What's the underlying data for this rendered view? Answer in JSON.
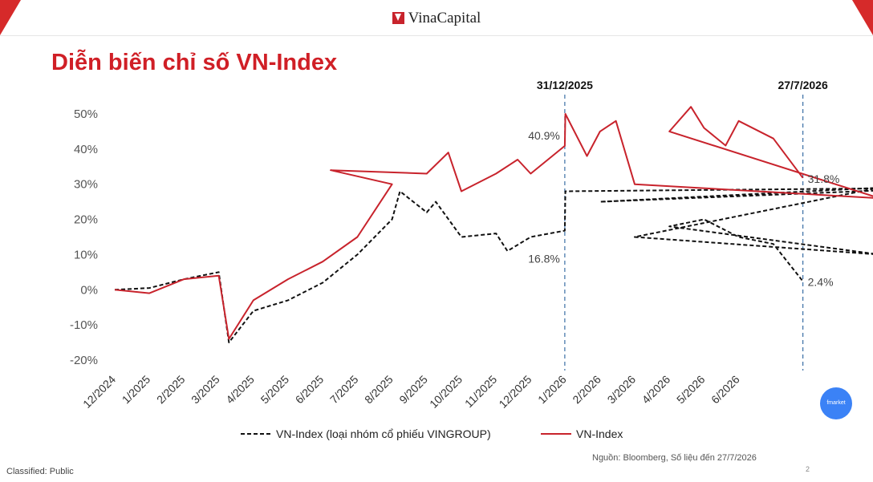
{
  "header": {
    "logo_text": "VinaCapital"
  },
  "title": "Diễn biến chỉ số VN-Index",
  "markers": [
    {
      "date": "31/12/2025",
      "label": "31/12/2025"
    },
    {
      "date": "27/7/2026",
      "label": "27/7/2026"
    }
  ],
  "annotations": [
    {
      "text": "40.9%",
      "series": "VN-Index",
      "at": "31/12/2025"
    },
    {
      "text": "16.8%",
      "series": "VN-Index (loại nhóm cổ phiếu VINGROUP)",
      "at": "31/12/2025"
    },
    {
      "text": "31.8%",
      "series": "VN-Index",
      "at": "27/7/2026"
    },
    {
      "text": "2.4%",
      "series": "VN-Index (loại nhóm cổ phiếu VINGROUP)",
      "at": "27/7/2026"
    }
  ],
  "chart_data": {
    "type": "line",
    "title": "Diễn biến chỉ số VN-Index",
    "xlabel": "",
    "ylabel": "",
    "x_unit": "month",
    "categories": [
      "12/2024",
      "1/2025",
      "2/2025",
      "3/2025",
      "4/2025",
      "5/2025",
      "6/2025",
      "7/2025",
      "8/2025",
      "9/2025",
      "10/2025",
      "11/2025",
      "12/2025",
      "1/2026",
      "2/2026",
      "3/2026",
      "4/2026",
      "5/2026",
      "6/2026"
    ],
    "x_range": [
      "12/2024",
      "27/7/2026"
    ],
    "yticks": [
      "50%",
      "40%",
      "30%",
      "20%",
      "10%",
      "0%",
      "-10%",
      "-20%"
    ],
    "ylim": [
      -20,
      50
    ],
    "grid": false,
    "legend_position": "bottom",
    "series": [
      {
        "name": "VN-Index (loại nhóm cổ phiếu VINGROUP)",
        "color": "#111111",
        "style": "dashed",
        "points": [
          [
            "12/2024",
            0
          ],
          [
            "1/2025",
            0.5
          ],
          [
            "2/2025",
            3
          ],
          [
            "3/2025",
            5
          ],
          [
            "10/3/2025",
            -15
          ],
          [
            "4/2025",
            -6
          ],
          [
            "5/2025",
            -3
          ],
          [
            "6/2025",
            2
          ],
          [
            "7/2025",
            10
          ],
          [
            "8/2025",
            20
          ],
          [
            "8/8/2025",
            28
          ],
          [
            "9/2025",
            22
          ],
          [
            "9/9/2025",
            25
          ],
          [
            "10/2025",
            15
          ],
          [
            "11/2025",
            16
          ],
          [
            "11/11/2025",
            11
          ],
          [
            "12/2025",
            15
          ],
          [
            "31/12/2025",
            16.8
          ],
          [
            "1/2026",
            28
          ],
          [
            "1/12/2026",
            29
          ],
          [
            "2/2026",
            25
          ],
          [
            "2/10/2026",
            29
          ],
          [
            "3/2026",
            15
          ],
          [
            "3/10/2026",
            10
          ],
          [
            "4/2026",
            18
          ],
          [
            "5/2026",
            20
          ],
          [
            "6/2026",
            15
          ],
          [
            "7/2026",
            13
          ],
          [
            "27/7/2026",
            2.4
          ]
        ]
      },
      {
        "name": "VN-Index",
        "color": "#c8232c",
        "style": "solid",
        "points": [
          [
            "12/2024",
            0
          ],
          [
            "1/2025",
            -1
          ],
          [
            "2/2025",
            3
          ],
          [
            "3/2025",
            4
          ],
          [
            "10/3/2025",
            -14
          ],
          [
            "4/2025",
            -3
          ],
          [
            "5/2025",
            3
          ],
          [
            "6/2025",
            8
          ],
          [
            "7/2025",
            15
          ],
          [
            "8/2025",
            30
          ],
          [
            "8/6/2025",
            34
          ],
          [
            "9/2025",
            33
          ],
          [
            "9/20/2025",
            39
          ],
          [
            "10/2025",
            28
          ],
          [
            "11/2025",
            33
          ],
          [
            "11/20/2025",
            37
          ],
          [
            "12/2025",
            33
          ],
          [
            "31/12/2025",
            40.9
          ],
          [
            "1/2026",
            50
          ],
          [
            "1/20/2026",
            38
          ],
          [
            "2/2026",
            45
          ],
          [
            "2/15/2026",
            48
          ],
          [
            "3/2026",
            30
          ],
          [
            "3/10/2026",
            26
          ],
          [
            "4/2026",
            45
          ],
          [
            "4/20/2026",
            52
          ],
          [
            "5/2026",
            46
          ],
          [
            "5/20/2026",
            41
          ],
          [
            "6/2026",
            48
          ],
          [
            "7/2026",
            43
          ],
          [
            "27/7/2026",
            31.8
          ]
        ]
      }
    ]
  },
  "footer": {
    "classification": "Classified: Public",
    "source": "Nguồn: Bloomberg, Số liệu đến 27/7/2026",
    "page_number": "2",
    "badge": "fmarket"
  }
}
